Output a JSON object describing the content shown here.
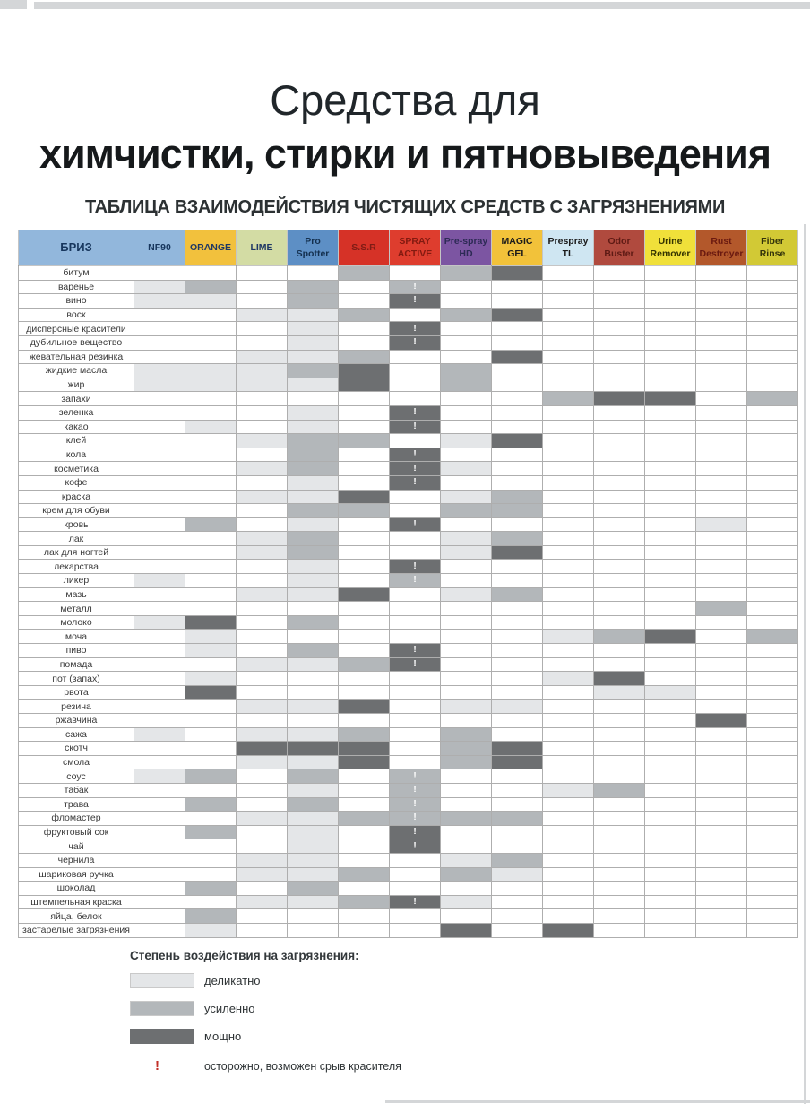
{
  "page": {
    "title_line1": "Средства для",
    "title_line2": "химчистки, стирки и пятновыведения",
    "subtitle": "ТАБЛИЦА ВЗАИМОДЕЙСТВИЯ ЧИСТЯЩИХ СРЕДСТВ С ЗАГРЯЗНЕНИЯМИ"
  },
  "chart_data": {
    "type": "heatmap",
    "title": "ТАБЛИЦА ВЗАИМОДЕЙСТВИЯ ЧИСТЯЩИХ СРЕДСТВ С ЗАГРЯЗНЕНИЯМИ",
    "legend_title": "Степень воздействия на загрязнения:",
    "brand_column": {
      "label": "БРИЗ",
      "bg": "#92b7dc",
      "fg": "#17365d"
    },
    "columns": [
      {
        "label": "NF90",
        "bg": "#92b7dc",
        "fg": "#17365d"
      },
      {
        "label": "ORANGE",
        "bg": "#f2c13d",
        "fg": "#1f3864"
      },
      {
        "label": "LIME",
        "bg": "#d3dca4",
        "fg": "#1f3864"
      },
      {
        "label": "Pro Spotter",
        "bg": "#5d8fc5",
        "fg": "#14304f"
      },
      {
        "label": "S.S.R",
        "bg": "#d63227",
        "fg": "#7e1c15"
      },
      {
        "label": "SPRAY ACTIVE",
        "bg": "#de3d2e",
        "fg": "#821a10"
      },
      {
        "label": "Pre-spray HD",
        "bg": "#7c55a2",
        "fg": "#2d2a55"
      },
      {
        "label": "MAGIC GEL",
        "bg": "#f2c23a",
        "fg": "#1a1a1a"
      },
      {
        "label": "Prespray TL",
        "bg": "#cfe6f2",
        "fg": "#1a1a1a"
      },
      {
        "label": "Odor Buster",
        "bg": "#b04a3e",
        "fg": "#5e1a14"
      },
      {
        "label": "Urine Remover",
        "bg": "#f0e03a",
        "fg": "#333300"
      },
      {
        "label": "Rust Destroyer",
        "bg": "#b3582b",
        "fg": "#6b1a10"
      },
      {
        "label": "Fiber Rinse",
        "bg": "#d2c935",
        "fg": "#33330a"
      }
    ],
    "rows": [
      "битум",
      "варенье",
      "вино",
      "воск",
      "дисперсные красители",
      "дубильное вещество",
      "жевательная резинка",
      "жидкие масла",
      "жир",
      "запахи",
      "зеленка",
      "какао",
      "клей",
      "кола",
      "косметика",
      "кофе",
      "краска",
      "крем для обуви",
      "кровь",
      "лак",
      "лак для ногтей",
      "лекарства",
      "ликер",
      "мазь",
      "металл",
      "молоко",
      "моча",
      "пиво",
      "помада",
      "пот (запах)",
      "рвота",
      "резина",
      "ржавчина",
      "сажа",
      "скотч",
      "смола",
      "соус",
      "табак",
      "трава",
      "фломастер",
      "фруктовый сок",
      "чай",
      "чернила",
      "шариковая ручка",
      "шоколад",
      "штемпельная краска",
      "яйца, белок",
      "застарелые загрязнения"
    ],
    "matrix": [
      [
        "0",
        "0",
        "0",
        "0",
        "2",
        "0",
        "2",
        "3",
        "0",
        "0",
        "0",
        "0",
        "0"
      ],
      [
        "1",
        "2",
        "0",
        "2",
        "0",
        "2!",
        "0",
        "0",
        "0",
        "0",
        "0",
        "0",
        "0"
      ],
      [
        "1",
        "1",
        "0",
        "2",
        "0",
        "3!",
        "0",
        "0",
        "0",
        "0",
        "0",
        "0",
        "0"
      ],
      [
        "0",
        "0",
        "1",
        "1",
        "2",
        "0",
        "2",
        "3",
        "0",
        "0",
        "0",
        "0",
        "0"
      ],
      [
        "0",
        "0",
        "0",
        "1",
        "0",
        "3!",
        "0",
        "0",
        "0",
        "0",
        "0",
        "0",
        "0"
      ],
      [
        "0",
        "0",
        "0",
        "1",
        "0",
        "3!",
        "0",
        "0",
        "0",
        "0",
        "0",
        "0",
        "0"
      ],
      [
        "0",
        "0",
        "1",
        "1",
        "2",
        "0",
        "0",
        "3",
        "0",
        "0",
        "0",
        "0",
        "0"
      ],
      [
        "1",
        "1",
        "1",
        "2",
        "3",
        "0",
        "2",
        "0",
        "0",
        "0",
        "0",
        "0",
        "0"
      ],
      [
        "1",
        "1",
        "1",
        "1",
        "3",
        "0",
        "2",
        "0",
        "0",
        "0",
        "0",
        "0",
        "0"
      ],
      [
        "0",
        "0",
        "0",
        "0",
        "0",
        "0",
        "0",
        "0",
        "2",
        "3",
        "3",
        "0",
        "2"
      ],
      [
        "0",
        "0",
        "0",
        "1",
        "0",
        "3!",
        "0",
        "0",
        "0",
        "0",
        "0",
        "0",
        "0"
      ],
      [
        "0",
        "1",
        "0",
        "1",
        "0",
        "3!",
        "0",
        "0",
        "0",
        "0",
        "0",
        "0",
        "0"
      ],
      [
        "0",
        "0",
        "1",
        "2",
        "2",
        "0",
        "1",
        "3",
        "0",
        "0",
        "0",
        "0",
        "0"
      ],
      [
        "0",
        "0",
        "0",
        "2",
        "0",
        "3!",
        "0",
        "0",
        "0",
        "0",
        "0",
        "0",
        "0"
      ],
      [
        "0",
        "0",
        "1",
        "2",
        "0",
        "3!",
        "1",
        "0",
        "0",
        "0",
        "0",
        "0",
        "0"
      ],
      [
        "0",
        "0",
        "0",
        "1",
        "0",
        "3!",
        "0",
        "0",
        "0",
        "0",
        "0",
        "0",
        "0"
      ],
      [
        "0",
        "0",
        "1",
        "1",
        "3",
        "0",
        "1",
        "2",
        "0",
        "0",
        "0",
        "0",
        "0"
      ],
      [
        "0",
        "0",
        "0",
        "2",
        "2",
        "0",
        "2",
        "2",
        "0",
        "0",
        "0",
        "0",
        "0"
      ],
      [
        "0",
        "2",
        "0",
        "1",
        "0",
        "3!",
        "0",
        "0",
        "0",
        "0",
        "0",
        "1",
        "0"
      ],
      [
        "0",
        "0",
        "1",
        "2",
        "0",
        "0",
        "1",
        "2",
        "0",
        "0",
        "0",
        "0",
        "0"
      ],
      [
        "0",
        "0",
        "1",
        "2",
        "0",
        "0",
        "1",
        "3",
        "0",
        "0",
        "0",
        "0",
        "0"
      ],
      [
        "0",
        "0",
        "0",
        "1",
        "0",
        "3!",
        "0",
        "0",
        "0",
        "0",
        "0",
        "0",
        "0"
      ],
      [
        "1",
        "0",
        "0",
        "1",
        "0",
        "2!",
        "0",
        "0",
        "0",
        "0",
        "0",
        "0",
        "0"
      ],
      [
        "0",
        "0",
        "1",
        "1",
        "3",
        "0",
        "1",
        "2",
        "0",
        "0",
        "0",
        "0",
        "0"
      ],
      [
        "0",
        "0",
        "0",
        "0",
        "0",
        "0",
        "0",
        "0",
        "0",
        "0",
        "0",
        "2",
        "0"
      ],
      [
        "1",
        "3",
        "0",
        "2",
        "0",
        "0",
        "0",
        "0",
        "0",
        "0",
        "0",
        "0",
        "0"
      ],
      [
        "0",
        "1",
        "0",
        "0",
        "0",
        "0",
        "0",
        "0",
        "1",
        "2",
        "3",
        "0",
        "2"
      ],
      [
        "0",
        "1",
        "0",
        "2",
        "0",
        "3!",
        "0",
        "0",
        "0",
        "0",
        "0",
        "0",
        "0"
      ],
      [
        "0",
        "0",
        "1",
        "1",
        "2",
        "3!",
        "0",
        "0",
        "0",
        "0",
        "0",
        "0",
        "0"
      ],
      [
        "0",
        "1",
        "0",
        "0",
        "0",
        "0",
        "0",
        "0",
        "1",
        "3",
        "0",
        "0",
        "0"
      ],
      [
        "0",
        "3",
        "0",
        "0",
        "0",
        "0",
        "0",
        "0",
        "0",
        "1",
        "1",
        "0",
        "0"
      ],
      [
        "0",
        "0",
        "1",
        "1",
        "3",
        "0",
        "1",
        "1",
        "0",
        "0",
        "0",
        "0",
        "0"
      ],
      [
        "0",
        "0",
        "0",
        "0",
        "0",
        "0",
        "0",
        "0",
        "0",
        "0",
        "0",
        "3",
        "0"
      ],
      [
        "1",
        "0",
        "1",
        "1",
        "2",
        "0",
        "2",
        "0",
        "0",
        "0",
        "0",
        "0",
        "0"
      ],
      [
        "0",
        "0",
        "3",
        "3",
        "3",
        "0",
        "2",
        "3",
        "0",
        "0",
        "0",
        "0",
        "0"
      ],
      [
        "0",
        "0",
        "1",
        "1",
        "3",
        "0",
        "2",
        "3",
        "0",
        "0",
        "0",
        "0",
        "0"
      ],
      [
        "1",
        "2",
        "0",
        "2",
        "0",
        "2!",
        "0",
        "0",
        "0",
        "0",
        "0",
        "0",
        "0"
      ],
      [
        "0",
        "0",
        "0",
        "1",
        "0",
        "2!",
        "0",
        "0",
        "1",
        "2",
        "0",
        "0",
        "0"
      ],
      [
        "0",
        "2",
        "0",
        "2",
        "0",
        "2!",
        "0",
        "0",
        "0",
        "0",
        "0",
        "0",
        "0"
      ],
      [
        "0",
        "0",
        "1",
        "1",
        "2",
        "2!",
        "2",
        "2",
        "0",
        "0",
        "0",
        "0",
        "0"
      ],
      [
        "0",
        "2",
        "0",
        "1",
        "0",
        "3!",
        "0",
        "0",
        "0",
        "0",
        "0",
        "0",
        "0"
      ],
      [
        "0",
        "0",
        "0",
        "1",
        "0",
        "3!",
        "0",
        "0",
        "0",
        "0",
        "0",
        "0",
        "0"
      ],
      [
        "0",
        "0",
        "1",
        "1",
        "0",
        "0",
        "1",
        "2",
        "0",
        "0",
        "0",
        "0",
        "0"
      ],
      [
        "0",
        "0",
        "1",
        "1",
        "2",
        "0",
        "2",
        "1",
        "0",
        "0",
        "0",
        "0",
        "0"
      ],
      [
        "0",
        "2",
        "0",
        "2",
        "0",
        "0",
        "0",
        "0",
        "0",
        "0",
        "0",
        "0",
        "0"
      ],
      [
        "0",
        "0",
        "1",
        "1",
        "2",
        "3!",
        "1",
        "0",
        "0",
        "0",
        "0",
        "0",
        "0"
      ],
      [
        "0",
        "2",
        "0",
        "0",
        "0",
        "0",
        "0",
        "0",
        "0",
        "0",
        "0",
        "0",
        "0"
      ],
      [
        "0",
        "1",
        "0",
        "0",
        "0",
        "0",
        "3",
        "0",
        "3",
        "0",
        "0",
        "0",
        "0"
      ]
    ],
    "levels": [
      {
        "code": "1",
        "label": "деликатно",
        "color": "#e4e6e8"
      },
      {
        "code": "2",
        "label": "усиленно",
        "color": "#b3b7ba"
      },
      {
        "code": "3",
        "label": "мощно",
        "color": "#6d6f71"
      }
    ],
    "warning": {
      "symbol": "!",
      "label": "осторожно, возможен срыв красителя",
      "color": "#c23028"
    }
  }
}
